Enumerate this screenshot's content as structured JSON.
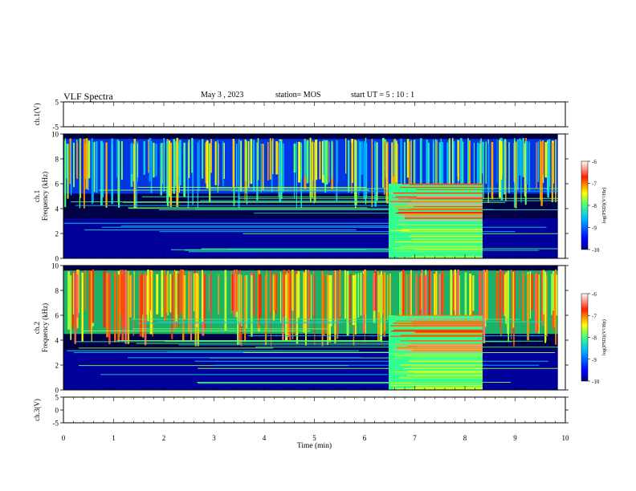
{
  "header": {
    "title": "VLF Spectra",
    "date": "May 3  , 2023",
    "station": "station= MOS",
    "start": "start  UT  =   5  : 10 : 1"
  },
  "chart_data": [
    {
      "type": "line",
      "name": "ch1-waveform",
      "ylabel": "ch.1(V)",
      "ylim": [
        -5,
        5
      ],
      "yticks": [
        5,
        -5
      ],
      "xlim": [
        0,
        10
      ],
      "x": [
        0,
        9.85
      ],
      "y": [
        0,
        0
      ]
    },
    {
      "type": "heatmap",
      "name": "ch1-spectrogram",
      "ylabel": "ch.1\nFrequency (kHz)",
      "ylim": [
        0,
        10
      ],
      "yticks": [
        0,
        2,
        4,
        6,
        8,
        10
      ],
      "xlim": [
        0,
        10
      ],
      "data_end_min": 9.85,
      "intense_band": {
        "x_start": 6.48,
        "x_end": 8.35,
        "freq_low": 0,
        "freq_high": 6
      },
      "colorbar": {
        "label": "log(PSD)(V²/Hz)",
        "range": [
          -10,
          -6
        ],
        "ticks": [
          "-6",
          "-7",
          "-8",
          "-9",
          "-10"
        ]
      }
    },
    {
      "type": "heatmap",
      "name": "ch2-spectrogram",
      "ylabel": "ch.2\nFrequency (kHz)",
      "ylim": [
        0,
        10
      ],
      "yticks": [
        0,
        2,
        4,
        6,
        8,
        10
      ],
      "xlim": [
        0,
        10
      ],
      "data_end_min": 9.85,
      "intense_band": {
        "x_start": 6.48,
        "x_end": 8.35,
        "freq_low": 0,
        "freq_high": 6
      },
      "colorbar": {
        "label": "log(PSD)(V²/Hz)",
        "range": [
          -10,
          -6
        ],
        "ticks": [
          "-6",
          "-7",
          "-8",
          "-9",
          "-10"
        ]
      }
    },
    {
      "type": "line",
      "name": "ch3-waveform",
      "ylabel": "ch.3(V)",
      "ylim": [
        -5,
        5
      ],
      "yticks": [
        5,
        0,
        -5
      ],
      "xlim": [
        0,
        10
      ],
      "x": [
        0,
        9.85
      ],
      "y": [
        -1,
        -1
      ]
    }
  ],
  "xaxis": {
    "label": "Time  (min)",
    "ticks": [
      "0",
      "1",
      "2",
      "3",
      "4",
      "5",
      "6",
      "7",
      "8",
      "9",
      "10"
    ],
    "range": [
      0,
      10
    ]
  },
  "colors": {
    "jet": [
      "#000080",
      "#0000ff",
      "#0080ff",
      "#00ffff",
      "#80ff80",
      "#ffff00",
      "#ff8000",
      "#ff0000",
      "#800000"
    ]
  }
}
